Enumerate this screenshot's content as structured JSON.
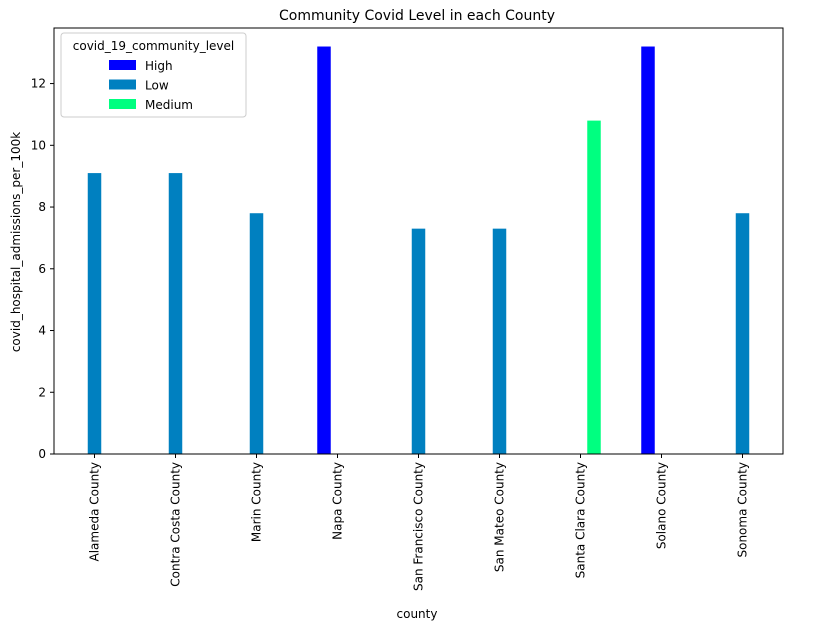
{
  "chart_data": {
    "type": "bar",
    "title": "Community Covid Level in each County",
    "xlabel": "county",
    "ylabel": "covid_hospital_admissions_per_100k",
    "categories": [
      "Alameda County",
      "Contra Costa County",
      "Marin County",
      "Napa County",
      "San Francisco County",
      "San Mateo County",
      "Santa Clara County",
      "Solano County",
      "Sonoma County"
    ],
    "ylim": [
      0,
      13.8
    ],
    "yticks": [
      "0",
      "2",
      "4",
      "6",
      "8",
      "10",
      "12"
    ],
    "grid": false,
    "legend": {
      "title": "covid_19_community_level",
      "placement": "top-left"
    },
    "series": [
      {
        "name": "High",
        "color": "#0000ff",
        "values": [
          null,
          null,
          null,
          13.2,
          null,
          null,
          null,
          13.2,
          null
        ]
      },
      {
        "name": "Low",
        "color": "#0080c0",
        "values": [
          9.1,
          9.1,
          7.8,
          null,
          7.3,
          7.3,
          null,
          null,
          7.8
        ]
      },
      {
        "name": "Medium",
        "color": "#00ff80",
        "values": [
          null,
          null,
          null,
          null,
          null,
          null,
          10.8,
          null,
          null
        ]
      }
    ]
  }
}
